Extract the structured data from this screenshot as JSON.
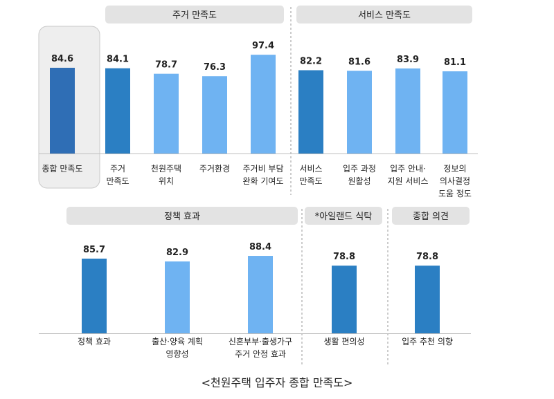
{
  "chart_data": {
    "type": "bar",
    "caption": "<천원주택 입주자 종합 만족도>",
    "colors": {
      "dark_blue": "#2f6eb5",
      "mid_blue": "#2b7fc3",
      "light_blue": "#6fb3f2",
      "group_header_bg": "#e3e3e3",
      "highlight_bg": "#eeeeee"
    },
    "rows": [
      {
        "groups": [
          {
            "header": "",
            "highlighted": true,
            "bars": [
              {
                "category": "종합 만족도",
                "value": 84.6,
                "color": "dark_blue"
              }
            ]
          },
          {
            "header": "주거 만족도",
            "bars": [
              {
                "category": "주거\n만족도",
                "value": 84.1,
                "color": "mid_blue"
              },
              {
                "category": "천원주택\n위치",
                "value": 78.7,
                "color": "light_blue"
              },
              {
                "category": "주거환경",
                "value": 76.3,
                "color": "light_blue"
              },
              {
                "category": "주거비 부담\n완화 기여도",
                "value": 97.4,
                "color": "light_blue"
              }
            ]
          },
          {
            "header": "서비스 만족도",
            "bars": [
              {
                "category": "서비스\n만족도",
                "value": 82.2,
                "color": "mid_blue"
              },
              {
                "category": "입주 과정\n원활성",
                "value": 81.6,
                "color": "light_blue"
              },
              {
                "category": "입주 안내·\n지원 서비스",
                "value": 83.9,
                "color": "light_blue"
              },
              {
                "category": "정보의\n의사결정\n도움 정도",
                "value": 81.1,
                "color": "light_blue"
              }
            ]
          }
        ]
      },
      {
        "groups": [
          {
            "header": "정책 효과",
            "bars": [
              {
                "category": "정책 효과",
                "value": 85.7,
                "color": "mid_blue"
              },
              {
                "category": "출산·양육 계획\n영향성",
                "value": 82.9,
                "color": "light_blue"
              },
              {
                "category": "신혼부부·출생가구\n주거 안정 효과",
                "value": 88.4,
                "color": "light_blue"
              }
            ]
          },
          {
            "header": "*아일랜드 식탁",
            "bars": [
              {
                "category": "생활 편의성",
                "value": 78.8,
                "color": "mid_blue"
              }
            ]
          },
          {
            "header": "종합 의견",
            "bars": [
              {
                "category": "입주 추천 의향",
                "value": 78.8,
                "color": "mid_blue"
              }
            ]
          }
        ]
      }
    ]
  }
}
